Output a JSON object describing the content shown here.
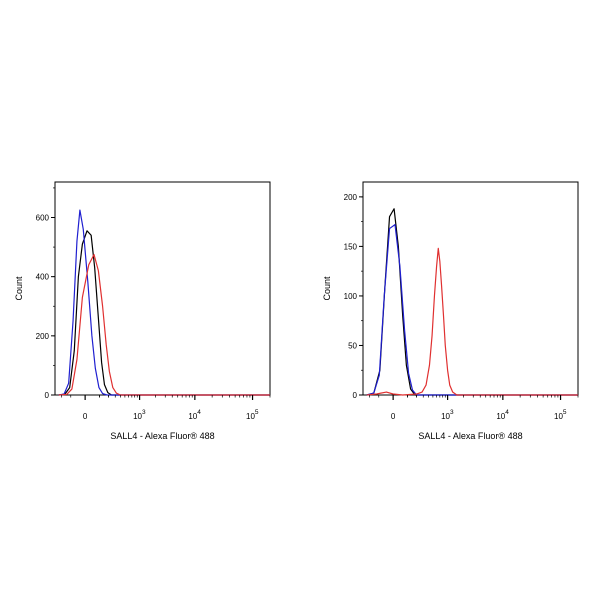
{
  "chart_data": [
    {
      "type": "line",
      "title": "",
      "xlabel": "SALL4 - Alexa Fluor® 488",
      "ylabel": "Count",
      "x_scale": "biexponential",
      "x_ticks": [
        {
          "value": 0,
          "label": "0",
          "exp": ""
        },
        {
          "value": 1000,
          "label": "10",
          "exp": "3"
        },
        {
          "value": 10000,
          "label": "10",
          "exp": "4"
        },
        {
          "value": 100000,
          "label": "10",
          "exp": "5"
        }
      ],
      "y_ticks": [
        0,
        200,
        400,
        600
      ],
      "ylim": [
        0,
        720
      ],
      "xlim": [
        -300,
        200000
      ],
      "grid": false,
      "legend": "none",
      "series": [
        {
          "color": "#000000",
          "points": [
            [
              -240,
              0
            ],
            [
              -160,
              3
            ],
            [
              -110,
              25
            ],
            [
              -70,
              150
            ],
            [
              -40,
              400
            ],
            [
              -15,
              510
            ],
            [
              10,
              555
            ],
            [
              35,
              540
            ],
            [
              60,
              430
            ],
            [
              90,
              260
            ],
            [
              120,
              110
            ],
            [
              150,
              35
            ],
            [
              190,
              8
            ],
            [
              240,
              0
            ],
            [
              200000,
              0
            ]
          ]
        },
        {
          "color": "#1f1fd0",
          "points": [
            [
              -240,
              0
            ],
            [
              -170,
              3
            ],
            [
              -120,
              40
            ],
            [
              -80,
              250
            ],
            [
              -50,
              520
            ],
            [
              -30,
              625
            ],
            [
              -10,
              560
            ],
            [
              15,
              380
            ],
            [
              40,
              200
            ],
            [
              65,
              90
            ],
            [
              95,
              25
            ],
            [
              130,
              5
            ],
            [
              180,
              0
            ],
            [
              200000,
              0
            ]
          ]
        },
        {
          "color": "#e03030",
          "points": [
            [
              -240,
              0
            ],
            [
              -140,
              2
            ],
            [
              -90,
              20
            ],
            [
              -50,
              120
            ],
            [
              -15,
              330
            ],
            [
              20,
              440
            ],
            [
              55,
              475
            ],
            [
              90,
              420
            ],
            [
              130,
              300
            ],
            [
              170,
              170
            ],
            [
              210,
              80
            ],
            [
              260,
              25
            ],
            [
              320,
              6
            ],
            [
              400,
              0
            ],
            [
              200000,
              0
            ]
          ]
        }
      ]
    },
    {
      "type": "line",
      "title": "",
      "xlabel": "SALL4 - Alexa Fluor® 488",
      "ylabel": "Count",
      "x_scale": "biexponential",
      "x_ticks": [
        {
          "value": 0,
          "label": "0",
          "exp": ""
        },
        {
          "value": 1000,
          "label": "10",
          "exp": "3"
        },
        {
          "value": 10000,
          "label": "10",
          "exp": "4"
        },
        {
          "value": 100000,
          "label": "10",
          "exp": "5"
        }
      ],
      "y_ticks": [
        0,
        50,
        100,
        150,
        200
      ],
      "ylim": [
        0,
        215
      ],
      "xlim": [
        -300,
        200000
      ],
      "grid": false,
      "legend": "none",
      "series": [
        {
          "color": "#000000",
          "points": [
            [
              -240,
              0
            ],
            [
              -150,
              2
            ],
            [
              -90,
              25
            ],
            [
              -50,
              110
            ],
            [
              -20,
              180
            ],
            [
              5,
              188
            ],
            [
              30,
              150
            ],
            [
              60,
              80
            ],
            [
              90,
              30
            ],
            [
              130,
              6
            ],
            [
              180,
              0
            ],
            [
              200000,
              0
            ]
          ]
        },
        {
          "color": "#1f1fd0",
          "points": [
            [
              -240,
              0
            ],
            [
              -150,
              2
            ],
            [
              -95,
              20
            ],
            [
              -55,
              100
            ],
            [
              -20,
              168
            ],
            [
              10,
              172
            ],
            [
              40,
              130
            ],
            [
              75,
              65
            ],
            [
              110,
              22
            ],
            [
              150,
              5
            ],
            [
              200,
              0
            ],
            [
              200000,
              0
            ]
          ]
        },
        {
          "color": "#e03030",
          "points": [
            [
              -240,
              0
            ],
            [
              -120,
              1
            ],
            [
              -40,
              3
            ],
            [
              0,
              1
            ],
            [
              60,
              0
            ],
            [
              200,
              1
            ],
            [
              280,
              3
            ],
            [
              350,
              10
            ],
            [
              420,
              30
            ],
            [
              480,
              60
            ],
            [
              540,
              100
            ],
            [
              600,
              130
            ],
            [
              650,
              148
            ],
            [
              700,
              135
            ],
            [
              760,
              110
            ],
            [
              830,
              80
            ],
            [
              900,
              50
            ],
            [
              1000,
              25
            ],
            [
              1100,
              10
            ],
            [
              1250,
              3
            ],
            [
              1500,
              0
            ],
            [
              200000,
              0
            ]
          ]
        }
      ]
    }
  ]
}
